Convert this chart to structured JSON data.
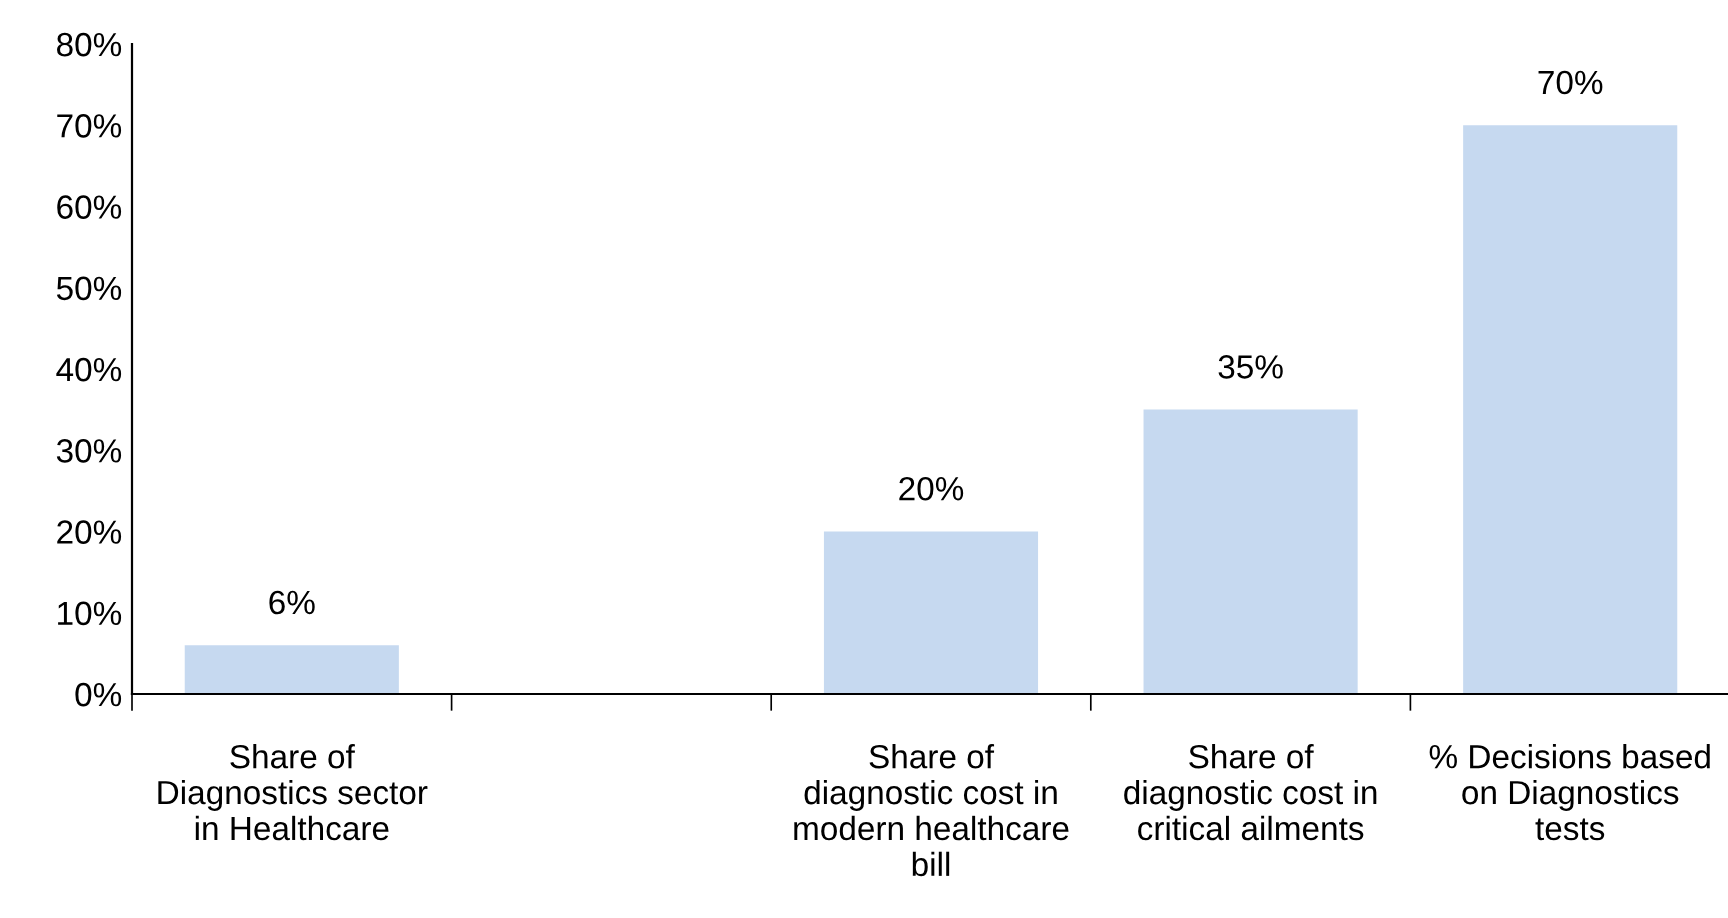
{
  "chart_data": {
    "type": "bar",
    "categories": [
      "Share of Diagnostics sector in Healthcare",
      null,
      "Share of diagnostic cost in modern healthcare bill",
      "Share of diagnostic cost in critical ailments",
      "% Decisions based on Diagnostics tests"
    ],
    "values": [
      6,
      null,
      20,
      35,
      70
    ],
    "value_labels": [
      "6%",
      null,
      "20%",
      "35%",
      "70%"
    ],
    "color": "#c6d9f0",
    "ylim": [
      0,
      80
    ],
    "yticks": [
      {
        "value": 0,
        "label": "0%"
      },
      {
        "value": 10,
        "label": "10%"
      },
      {
        "value": 20,
        "label": "20%"
      },
      {
        "value": 30,
        "label": "30%"
      },
      {
        "value": 40,
        "label": "40%"
      },
      {
        "value": 50,
        "label": "50%"
      },
      {
        "value": 60,
        "label": "60%"
      },
      {
        "value": 70,
        "label": "70%"
      },
      {
        "value": 80,
        "label": "80%"
      }
    ],
    "grid": false,
    "legend": false
  }
}
